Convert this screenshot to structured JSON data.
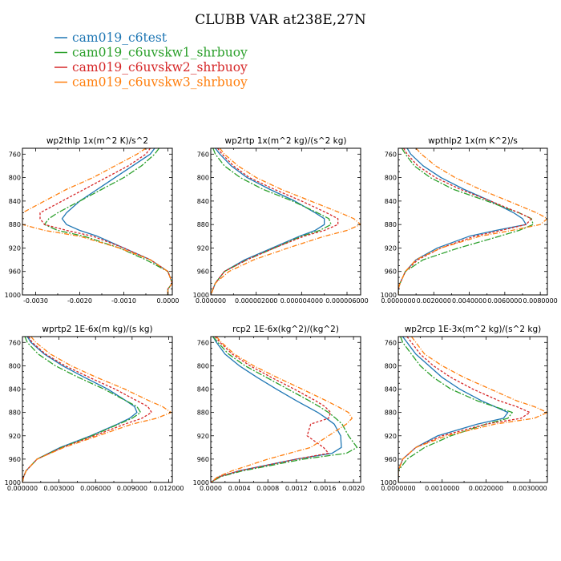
{
  "figure_title": "CLUBB VAR at238E,27N",
  "legend": [
    {
      "name": "cam019_c6test",
      "color": "#1f77b4",
      "dash": "solid"
    },
    {
      "name": "cam019_c6uvskw1_shrbuoy",
      "color": "#2ca02c",
      "dash": "8,2,2,2"
    },
    {
      "name": "cam019_c6uvskw2_shrbuoy",
      "color": "#d62728",
      "dash": "3,2"
    },
    {
      "name": "cam019_c6uvskw3_shrbuoy",
      "color": "#ff7f0e",
      "dash": "6,2,1,2"
    }
  ],
  "chart_data": [
    {
      "type": "line",
      "title": "wp2thlp   1x(m^2 K)/s^2",
      "xlim": [
        -0.0033,
        0.0001
      ],
      "ylim": [
        1000,
        750
      ],
      "xticks": [
        -0.003,
        -0.002,
        -0.001,
        0.0
      ],
      "xticklabels": [
        "-0.0030",
        "-0.0020",
        "-0.0010",
        "0.0000"
      ],
      "yticks": [
        760,
        800,
        840,
        880,
        920,
        960,
        1000
      ],
      "y": [
        750,
        760,
        780,
        800,
        820,
        840,
        860,
        870,
        880,
        890,
        900,
        920,
        940,
        960,
        980,
        990,
        1000
      ],
      "series": [
        {
          "name": "cam019_c6test",
          "values": [
            -0.0003,
            -0.0004,
            -0.0008,
            -0.0012,
            -0.0016,
            -0.002,
            -0.0023,
            -0.0024,
            -0.0023,
            -0.002,
            -0.0016,
            -0.001,
            -0.0004,
            0.0,
            0.0001,
            0.0,
            0.0
          ]
        },
        {
          "name": "cam019_c6uvskw1_shrbuoy",
          "values": [
            -0.0002,
            -0.0003,
            -0.0006,
            -0.001,
            -0.0015,
            -0.002,
            -0.0025,
            -0.0027,
            -0.0028,
            -0.0025,
            -0.0019,
            -0.0011,
            -0.0005,
            0.0,
            0.0001,
            0.0,
            0.0
          ]
        },
        {
          "name": "cam019_c6uvskw2_shrbuoy",
          "values": [
            -0.0004,
            -0.0005,
            -0.0009,
            -0.0014,
            -0.0019,
            -0.0024,
            -0.0029,
            -0.0029,
            -0.0028,
            -0.0023,
            -0.0017,
            -0.001,
            -0.0004,
            0.0,
            0.0001,
            0.0,
            0.0
          ]
        },
        {
          "name": "cam019_c6uvskw3_shrbuoy",
          "values": [
            -0.0005,
            -0.0007,
            -0.0012,
            -0.0017,
            -0.0023,
            -0.0028,
            -0.0033,
            -0.0033,
            -0.0033,
            -0.0028,
            -0.002,
            -0.0011,
            -0.0004,
            0.0,
            0.0001,
            0.0,
            0.0
          ]
        }
      ]
    },
    {
      "type": "line",
      "title": "wp2rtp   1x(m^2 kg)/(s^2 kg)",
      "xlim": [
        0.0,
        6.6e-06
      ],
      "ylim": [
        1000,
        750
      ],
      "xticks": [
        0.0,
        2e-06,
        4e-06,
        6e-06
      ],
      "xticklabels": [
        "0.000000",
        "0.000002000",
        "0.000004000",
        "0.000006000"
      ],
      "yticks": [
        760,
        800,
        840,
        880,
        920,
        960,
        1000
      ],
      "y": [
        750,
        760,
        780,
        800,
        820,
        840,
        860,
        870,
        880,
        890,
        900,
        920,
        940,
        960,
        980,
        990,
        1000
      ],
      "series": [
        {
          "name": "cam019_c6test",
          "values": [
            2e-07,
            4e-07,
            9e-07,
            1.6e-06,
            2.6e-06,
            3.7e-06,
            4.6e-06,
            5e-06,
            5e-06,
            4.6e-06,
            3.9e-06,
            2.7e-06,
            1.5e-06,
            6e-07,
            2e-07,
            1e-07,
            0.0
          ]
        },
        {
          "name": "cam019_c6uvskw1_shrbuoy",
          "values": [
            1e-07,
            2e-07,
            6e-07,
            1.3e-06,
            2.3e-06,
            3.6e-06,
            4.7e-06,
            5.2e-06,
            5.3e-06,
            4.8e-06,
            4e-06,
            2.8e-06,
            1.6e-06,
            6e-07,
            2e-07,
            1e-07,
            0.0
          ]
        },
        {
          "name": "cam019_c6uvskw2_shrbuoy",
          "values": [
            3e-07,
            5e-07,
            1e-06,
            1.7e-06,
            2.8e-06,
            4e-06,
            5.1e-06,
            5.6e-06,
            5.6e-06,
            5e-06,
            4.1e-06,
            2.8e-06,
            1.6e-06,
            6e-07,
            2e-07,
            1e-07,
            0.0
          ]
        },
        {
          "name": "cam019_c6uvskw3_shrbuoy",
          "values": [
            4e-07,
            6e-07,
            1.2e-06,
            2e-06,
            3.1e-06,
            4.4e-06,
            5.7e-06,
            6.3e-06,
            6.6e-06,
            6e-06,
            5e-06,
            3.4e-06,
            1.9e-06,
            8e-07,
            2e-07,
            1e-07,
            0.0
          ]
        }
      ]
    },
    {
      "type": "line",
      "title": "wpthlp2   1x(m K^2)/s",
      "xlim": [
        0.0,
        0.0084
      ],
      "ylim": [
        1000,
        750
      ],
      "xticks": [
        0.0,
        0.002,
        0.004,
        0.006,
        0.008
      ],
      "xticklabels": [
        "0.0000000",
        "0.0020000",
        "0.0040000",
        "0.0060000",
        "0.0080000"
      ],
      "yticks": [
        760,
        800,
        840,
        880,
        920,
        960,
        1000
      ],
      "y": [
        750,
        760,
        780,
        800,
        820,
        840,
        860,
        870,
        880,
        890,
        900,
        920,
        940,
        960,
        980,
        990,
        1000
      ],
      "series": [
        {
          "name": "cam019_c6test",
          "values": [
            0.0005,
            0.0007,
            0.0014,
            0.0024,
            0.0037,
            0.0052,
            0.0065,
            0.007,
            0.0072,
            0.0055,
            0.004,
            0.0022,
            0.001,
            0.0004,
            0.0001,
            0.0,
            0.0
          ]
        },
        {
          "name": "cam019_c6uvskw1_shrbuoy",
          "values": [
            0.0002,
            0.0004,
            0.0009,
            0.0018,
            0.0031,
            0.005,
            0.0068,
            0.0075,
            0.0076,
            0.0068,
            0.0057,
            0.0034,
            0.0014,
            0.0004,
            0.0001,
            0.0,
            0.0
          ]
        },
        {
          "name": "cam019_c6uvskw2_shrbuoy",
          "values": [
            0.0003,
            0.0005,
            0.0011,
            0.0021,
            0.0035,
            0.0052,
            0.0068,
            0.0075,
            0.0072,
            0.0058,
            0.0043,
            0.0024,
            0.0011,
            0.0004,
            0.0001,
            0.0,
            0.0
          ]
        },
        {
          "name": "cam019_c6uvskw3_shrbuoy",
          "values": [
            0.001,
            0.0013,
            0.0021,
            0.0032,
            0.0046,
            0.0062,
            0.0078,
            0.0084,
            0.008,
            0.0064,
            0.0046,
            0.0024,
            0.001,
            0.0004,
            0.0001,
            0.0,
            0.0
          ]
        }
      ]
    },
    {
      "type": "line",
      "title": "wprtp2   1E-6x(m kg)/(s kg)",
      "xlim": [
        0.0,
        0.0123
      ],
      "ylim": [
        1000,
        750
      ],
      "xticks": [
        0.0,
        0.003,
        0.006,
        0.009,
        0.012
      ],
      "xticklabels": [
        "0.000000",
        "0.003000",
        "0.006000",
        "0.009000",
        "0.012000"
      ],
      "yticks": [
        760,
        800,
        840,
        880,
        920,
        960,
        1000
      ],
      "y": [
        750,
        760,
        780,
        800,
        820,
        840,
        860,
        870,
        880,
        890,
        900,
        920,
        940,
        960,
        980,
        990,
        1000
      ],
      "series": [
        {
          "name": "cam019_c6test",
          "values": [
            0.0004,
            0.0007,
            0.0018,
            0.0033,
            0.0051,
            0.007,
            0.0085,
            0.0092,
            0.0094,
            0.0088,
            0.0078,
            0.0056,
            0.0031,
            0.0012,
            0.0003,
            0.0001,
            0.0
          ]
        },
        {
          "name": "cam019_c6uvskw1_shrbuoy",
          "values": [
            0.0002,
            0.0004,
            0.0013,
            0.0027,
            0.0046,
            0.0067,
            0.0085,
            0.0094,
            0.0097,
            0.009,
            0.0079,
            0.0057,
            0.0032,
            0.0012,
            0.0003,
            0.0001,
            0.0
          ]
        },
        {
          "name": "cam019_c6uvskw2_shrbuoy",
          "values": [
            0.0005,
            0.0008,
            0.0019,
            0.0035,
            0.0055,
            0.0076,
            0.0094,
            0.0103,
            0.0106,
            0.0098,
            0.0084,
            0.0059,
            0.0033,
            0.0012,
            0.0003,
            0.0001,
            0.0
          ]
        },
        {
          "name": "cam019_c6uvskw3_shrbuoy",
          "values": [
            0.0007,
            0.0011,
            0.0023,
            0.004,
            0.0061,
            0.0084,
            0.0104,
            0.0115,
            0.0122,
            0.011,
            0.009,
            0.0062,
            0.0034,
            0.0012,
            0.0003,
            0.0001,
            0.0
          ]
        }
      ]
    },
    {
      "type": "line",
      "title": "rcp2   1E-6x(kg^2)/(kg^2)",
      "xlim": [
        0.0,
        0.0021
      ],
      "ylim": [
        1000,
        750
      ],
      "xticks": [
        0.0,
        0.0004,
        0.0008,
        0.0012,
        0.0016,
        0.002
      ],
      "xticklabels": [
        "0.0000",
        "0.0004",
        "0.0008",
        "0.0012",
        "0.0016",
        "0.0020"
      ],
      "yticks": [
        760,
        800,
        840,
        880,
        920,
        960,
        1000
      ],
      "y": [
        750,
        760,
        780,
        800,
        820,
        840,
        860,
        870,
        880,
        890,
        900,
        920,
        940,
        950,
        960,
        980,
        990,
        1000
      ],
      "series": [
        {
          "name": "cam019_c6test",
          "values": [
            3e-05,
            8e-05,
            0.0002,
            0.0004,
            0.00065,
            0.00092,
            0.0012,
            0.00135,
            0.0015,
            0.00162,
            0.00173,
            0.00182,
            0.00183,
            0.0017,
            0.0012,
            0.0004,
            0.00012,
            0.0
          ]
        },
        {
          "name": "cam019_c6uvskw1_shrbuoy",
          "values": [
            3e-05,
            0.0001,
            0.00025,
            0.00048,
            0.00078,
            0.00108,
            0.00138,
            0.00152,
            0.00165,
            0.00175,
            0.00184,
            0.00193,
            0.00205,
            0.0019,
            0.0013,
            0.00045,
            0.00014,
            0.0
          ]
        },
        {
          "name": "cam019_c6uvskw2_shrbuoy",
          "values": [
            6e-05,
            0.00013,
            0.0003,
            0.00055,
            0.00085,
            0.00117,
            0.00147,
            0.0016,
            0.00168,
            0.00165,
            0.0014,
            0.00135,
            0.00158,
            0.00165,
            0.0012,
            0.0004,
            0.00012,
            0.0
          ]
        },
        {
          "name": "cam019_c6uvskw3_shrbuoy",
          "values": [
            8e-05,
            0.00015,
            0.00033,
            0.0006,
            0.00093,
            0.00128,
            0.00162,
            0.00178,
            0.00193,
            0.00198,
            0.0019,
            0.00165,
            0.0014,
            0.0011,
            0.0008,
            0.0003,
            0.0001,
            0.0
          ]
        }
      ]
    },
    {
      "type": "line",
      "title": "wp2rcp   1E-3x(m^2 kg)/(s^2 kg)",
      "xlim": [
        0.0,
        0.0034
      ],
      "ylim": [
        1000,
        750
      ],
      "xticks": [
        0.0,
        0.001,
        0.002,
        0.003
      ],
      "xticklabels": [
        "0.0000000",
        "0.0010000",
        "0.0020000",
        "0.0030000"
      ],
      "yticks": [
        760,
        800,
        840,
        880,
        920,
        960,
        1000
      ],
      "y": [
        750,
        760,
        780,
        800,
        820,
        840,
        860,
        870,
        880,
        890,
        900,
        920,
        940,
        960,
        980,
        990,
        1000
      ],
      "series": [
        {
          "name": "cam019_c6test",
          "values": [
            0.0001,
            0.0002,
            0.0004,
            0.0007,
            0.001,
            0.0014,
            0.0019,
            0.0022,
            0.0025,
            0.0024,
            0.0018,
            0.0009,
            0.0004,
            0.0001,
            0.0,
            0.0,
            0.0
          ]
        },
        {
          "name": "cam019_c6uvskw1_shrbuoy",
          "values": [
            5e-05,
            0.0001,
            0.0003,
            0.0005,
            0.0008,
            0.0012,
            0.0018,
            0.0022,
            0.0026,
            0.0025,
            0.002,
            0.0012,
            0.0006,
            0.0002,
            0.0,
            0.0,
            0.0
          ]
        },
        {
          "name": "cam019_c6uvskw2_shrbuoy",
          "values": [
            0.0002,
            0.0003,
            0.0005,
            0.0008,
            0.0012,
            0.0017,
            0.0023,
            0.0027,
            0.003,
            0.0028,
            0.002,
            0.001,
            0.0004,
            0.0001,
            0.0,
            0.0,
            0.0
          ]
        },
        {
          "name": "cam019_c6uvskw3_shrbuoy",
          "values": [
            0.0003,
            0.0004,
            0.0006,
            0.001,
            0.0015,
            0.0021,
            0.0027,
            0.0031,
            0.0034,
            0.0031,
            0.0022,
            0.0011,
            0.0004,
            0.0001,
            0.0,
            0.0,
            0.0
          ]
        }
      ]
    }
  ]
}
